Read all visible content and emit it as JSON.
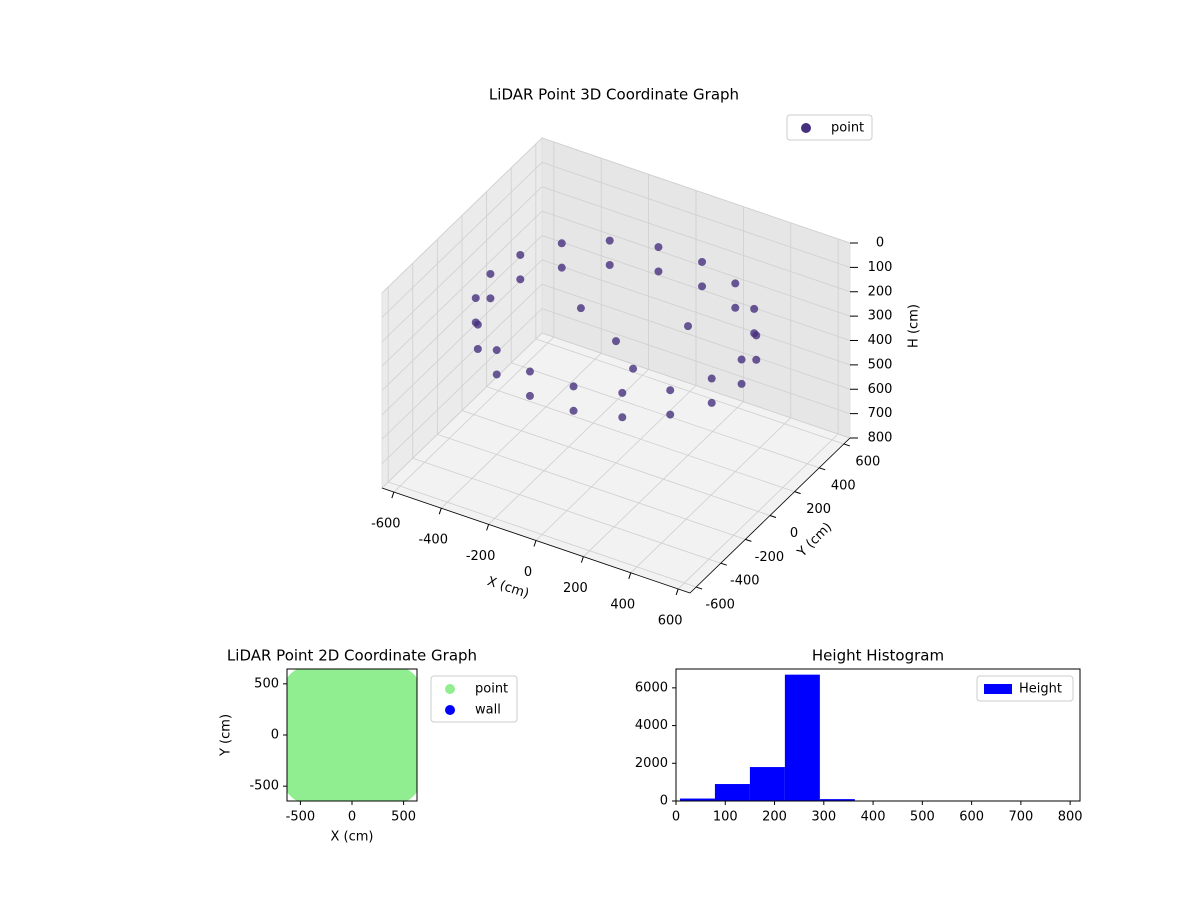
{
  "chart_data": [
    {
      "type": "scatter3d",
      "title": "LiDAR Point 3D Coordinate Graph",
      "x_label": "X (cm)",
      "y_label": "Y (cm)",
      "z_label": "H (cm)",
      "xlim": [
        -650,
        650
      ],
      "ylim": [
        -650,
        650
      ],
      "zlim": [
        800,
        0
      ],
      "xticks": [
        -600,
        -400,
        -200,
        0,
        200,
        400,
        600
      ],
      "yticks": [
        -600,
        -400,
        -200,
        0,
        200,
        400,
        600
      ],
      "zticks": [
        0,
        100,
        200,
        300,
        400,
        500,
        600,
        700,
        800
      ],
      "grid": true,
      "legend": "upper right",
      "series": [
        {
          "name": "point",
          "color": "#46307e",
          "x": [
            530,
            530,
            498,
            498,
            406,
            406,
            265,
            265,
            92,
            92,
            -92,
            -92,
            -265,
            -265,
            -406,
            -406,
            -498,
            -498,
            -530,
            -530,
            -498,
            -498,
            -406,
            -406,
            -265,
            -265,
            -92,
            -92,
            92,
            92,
            265,
            265,
            406,
            406,
            498,
            498,
            0,
            -200,
            150,
            200
          ],
          "y": [
            0,
            0,
            181,
            181,
            341,
            341,
            459,
            459,
            522,
            522,
            522,
            522,
            459,
            459,
            341,
            341,
            181,
            181,
            0,
            0,
            -181,
            -181,
            -341,
            -341,
            -459,
            -459,
            -522,
            -522,
            -522,
            -522,
            -459,
            -459,
            -341,
            -341,
            -181,
            -181,
            0,
            100,
            -150,
            200
          ],
          "z": [
            200,
            300,
            200,
            300,
            200,
            300,
            200,
            300,
            200,
            300,
            200,
            300,
            200,
            300,
            200,
            300,
            200,
            300,
            200,
            300,
            200,
            300,
            200,
            300,
            200,
            300,
            200,
            300,
            200,
            300,
            200,
            300,
            200,
            300,
            200,
            300,
            300,
            280,
            290,
            270
          ]
        }
      ]
    },
    {
      "type": "scatter",
      "title": "LiDAR Point 2D Coordinate Graph",
      "x_label": "X (cm)",
      "y_label": "Y (cm)",
      "xlim": [
        -630,
        630
      ],
      "ylim": [
        -645,
        645
      ],
      "xticks": [
        -500,
        0,
        500
      ],
      "yticks": [
        -500,
        0,
        500
      ],
      "legend": "outside right",
      "series": [
        {
          "name": "point",
          "color": "#90ee90",
          "x": [
            0,
            300,
            -300,
            0,
            0,
            212,
            212,
            -212,
            -212,
            550,
            -550,
            0,
            0,
            390,
            390,
            -390,
            -390,
            500,
            500,
            -500,
            -500,
            250,
            250,
            -250,
            -250
          ],
          "y": [
            0,
            0,
            0,
            300,
            -300,
            212,
            -212,
            212,
            -212,
            0,
            0,
            560,
            -560,
            390,
            -390,
            390,
            -390,
            250,
            -250,
            250,
            -250,
            500,
            -500,
            500,
            -500
          ]
        },
        {
          "name": "wall",
          "color": "#0000ff",
          "x": [],
          "y": []
        }
      ]
    },
    {
      "type": "histogram",
      "title": "Height Histogram",
      "xlim": [
        0,
        820
      ],
      "ylim": [
        0,
        7000
      ],
      "xticks": [
        0,
        100,
        200,
        300,
        400,
        500,
        600,
        700,
        800
      ],
      "yticks": [
        0,
        2000,
        4000,
        6000
      ],
      "legend": "upper right",
      "series": [
        {
          "name": "Height",
          "color": "#0000ff",
          "bins": [
            8,
            79,
            150,
            221,
            292,
            363,
            434,
            505,
            576,
            647,
            718,
            789
          ],
          "values": [
            130,
            900,
            1800,
            6700,
            100,
            0,
            0,
            0,
            0,
            0,
            20
          ]
        }
      ]
    }
  ]
}
